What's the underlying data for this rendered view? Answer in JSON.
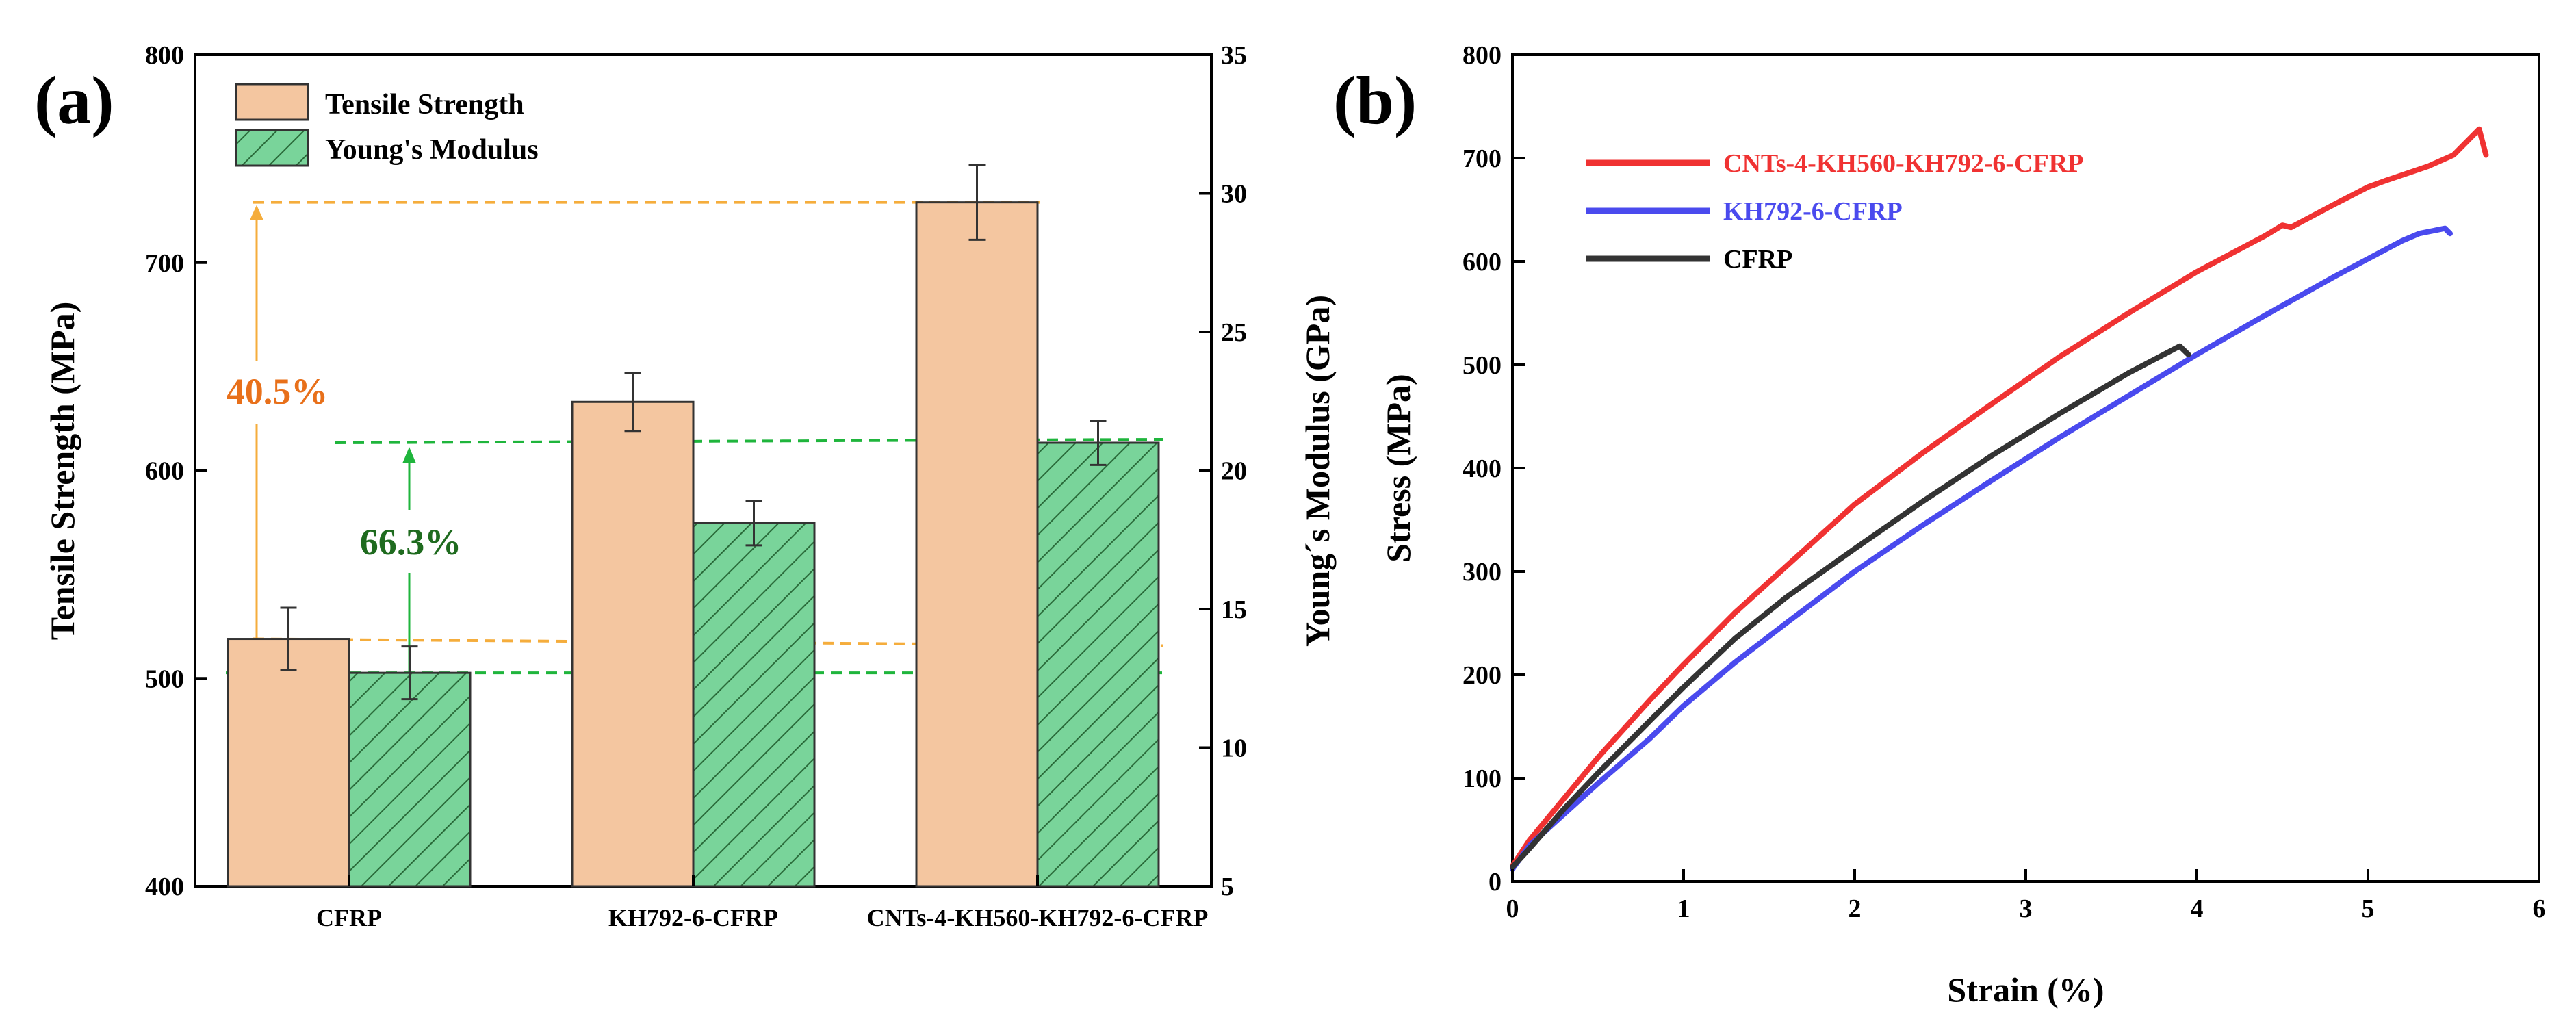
{
  "chart_data": [
    {
      "panel": "(a)",
      "type": "bar",
      "title": "",
      "categories": [
        "CFRP",
        "KH792-6-CFRP",
        "CNTs-4-KH560-KH792-6-CFRP"
      ],
      "series": [
        {
          "name": "Tensile Strength",
          "axis": "left",
          "values": [
            519,
            633,
            729
          ],
          "errors": [
            15,
            14,
            18
          ],
          "color": "#f4c6a0",
          "hatch": false
        },
        {
          "name": "Young's Modulus",
          "axis": "right",
          "values": [
            12.7,
            18.1,
            21.0
          ],
          "errors": [
            0.95,
            0.8,
            0.8
          ],
          "color": "#79d49a",
          "hatch": true
        }
      ],
      "ylabel": "Tensile Strength (MPa)",
      "ylim": [
        400,
        800
      ],
      "yticks": [
        400,
        500,
        600,
        700,
        800
      ],
      "y2label": "Young´s Modulus (GPa)",
      "y2lim": [
        5,
        35
      ],
      "y2ticks": [
        5,
        10,
        15,
        20,
        25,
        30,
        35
      ],
      "legend_position": "top-left",
      "annotations": [
        {
          "text": "40.5%",
          "color": "#e8701a",
          "axis": "left",
          "from": 519,
          "to": 729,
          "line_color": "#f5ad3c"
        },
        {
          "text": "66.3%",
          "color": "#1f6b1f",
          "axis": "right",
          "from": 12.7,
          "to": 21.0,
          "line_color": "#1fb53c"
        }
      ]
    },
    {
      "panel": "(b)",
      "type": "line",
      "title": "",
      "xlabel": "Strain (%)",
      "ylabel": "Stress (MPa)",
      "xlim": [
        0,
        6
      ],
      "ylim": [
        0,
        800
      ],
      "xticks": [
        0,
        1,
        2,
        3,
        4,
        5,
        6
      ],
      "yticks": [
        0,
        100,
        200,
        300,
        400,
        500,
        600,
        700,
        800
      ],
      "legend_position": "top-left",
      "series": [
        {
          "name": "CNTs-4-KH560-KH792-6-CFRP",
          "color": "#f03232",
          "x": [
            0,
            0.1,
            0.3,
            0.5,
            0.8,
            1.0,
            1.3,
            1.6,
            2.0,
            2.4,
            2.8,
            3.2,
            3.6,
            4.0,
            4.4,
            4.5,
            4.55,
            4.8,
            5.0,
            5.1,
            5.35,
            5.5,
            5.65,
            5.69
          ],
          "y": [
            15,
            40,
            80,
            120,
            175,
            210,
            260,
            305,
            365,
            415,
            462,
            508,
            550,
            590,
            625,
            635,
            633,
            655,
            672,
            678,
            692,
            703,
            728,
            703
          ]
        },
        {
          "name": "KH792-6-CFRP",
          "color": "#4a4aee",
          "x": [
            0,
            0.1,
            0.3,
            0.5,
            0.8,
            1.0,
            1.3,
            1.6,
            2.0,
            2.4,
            2.8,
            3.2,
            3.6,
            4.0,
            4.4,
            4.8,
            5.2,
            5.3,
            5.45,
            5.48
          ],
          "y": [
            12,
            35,
            65,
            95,
            138,
            170,
            212,
            250,
            300,
            345,
            388,
            430,
            470,
            510,
            548,
            585,
            620,
            627,
            632,
            627
          ]
        },
        {
          "name": "CFRP",
          "color": "#333333",
          "x": [
            0,
            0.1,
            0.3,
            0.5,
            0.8,
            1.0,
            1.3,
            1.6,
            2.0,
            2.4,
            2.8,
            3.2,
            3.6,
            3.9,
            3.95
          ],
          "y": [
            14,
            32,
            70,
            105,
            155,
            188,
            235,
            275,
            322,
            368,
            412,
            453,
            492,
            518,
            510
          ]
        }
      ]
    }
  ]
}
